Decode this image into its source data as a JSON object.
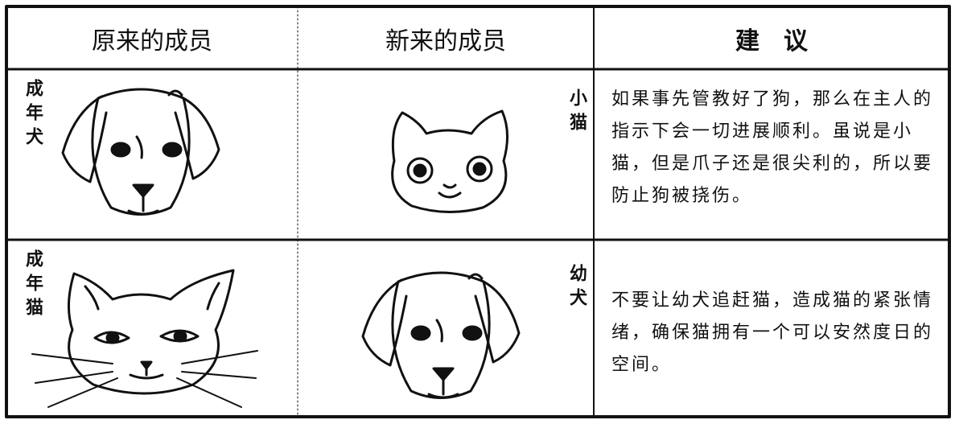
{
  "table": {
    "header": [
      "原来的成员",
      "新来的成员",
      "建　议"
    ],
    "rows": [
      [
        "成年犬",
        "小猫",
        "如果事先管教好了狗，那么在主人的指示下会一切进展顺利。虽说是小猫，但是爪子还是很尖利的，所以要防止狗被挠伤。"
      ],
      [
        "成年猫",
        "幼犬",
        "不要让幼犬追赶猫，造成猫的紧张情绪，确保猫拥有一个可以安然度日的空间。"
      ]
    ]
  }
}
